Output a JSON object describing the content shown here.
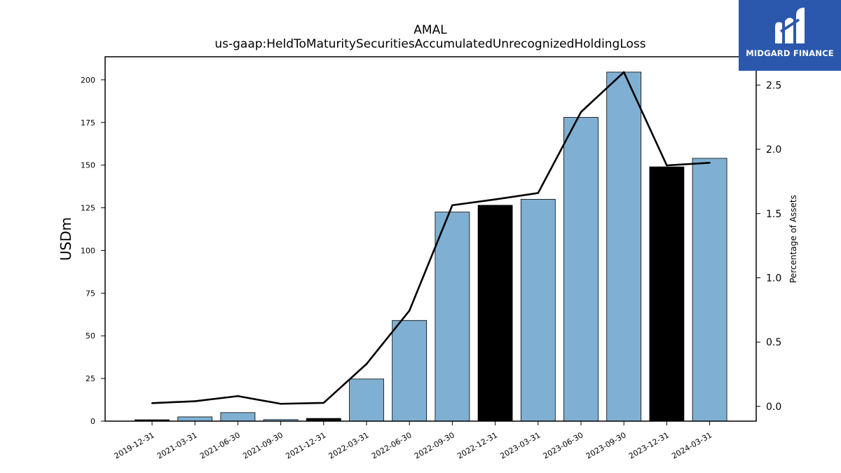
{
  "chart_data": {
    "type": "bar",
    "title": "AMAL",
    "subtitle": "us-gaap:HeldToMaturitySecuritiesAccumulatedUnrecognizedHoldingLoss",
    "ylabel": "USDm",
    "ylabel_right": "Percentage of Assets",
    "categories": [
      "2019-12-31",
      "2021-03-31",
      "2021-06-30",
      "2021-09-30",
      "2021-12-31",
      "2022-03-31",
      "2022-06-30",
      "2022-09-30",
      "2022-12-31",
      "2023-03-31",
      "2023-06-30",
      "2023-09-30",
      "2023-12-31",
      "2024-03-31"
    ],
    "series": [
      {
        "type": "bar",
        "axis": "left",
        "values": [
          0.8,
          2.5,
          5.0,
          0.9,
          1.6,
          24.7,
          59.0,
          122.5,
          126.5,
          130.0,
          178.0,
          204.5,
          149.0,
          154.0
        ],
        "colors": [
          "#000000",
          "#7fb0d3",
          "#7fb0d3",
          "#7fb0d3",
          "#000000",
          "#7fb0d3",
          "#7fb0d3",
          "#7fb0d3",
          "#000000",
          "#7fb0d3",
          "#7fb0d3",
          "#7fb0d3",
          "#000000",
          "#7fb0d3"
        ]
      },
      {
        "type": "line",
        "axis": "right",
        "color": "#000000",
        "values": [
          0.025,
          0.04,
          0.08,
          0.02,
          0.027,
          0.33,
          0.745,
          1.565,
          1.61,
          1.66,
          2.29,
          2.6,
          1.875,
          1.895
        ]
      }
    ],
    "ylim": [
      0,
      213.5
    ],
    "y_ticks": [
      0,
      25,
      50,
      75,
      100,
      125,
      150,
      175,
      200
    ],
    "ylim_right": [
      -0.115,
      2.72
    ],
    "y_ticks_right": [
      "0.0",
      "0.5",
      "1.0",
      "1.5",
      "2.0",
      "2.5"
    ],
    "grid": false,
    "legend": "none"
  },
  "logo": {
    "name": "MIDGARD FINANCE",
    "color": "#2b58ad"
  }
}
